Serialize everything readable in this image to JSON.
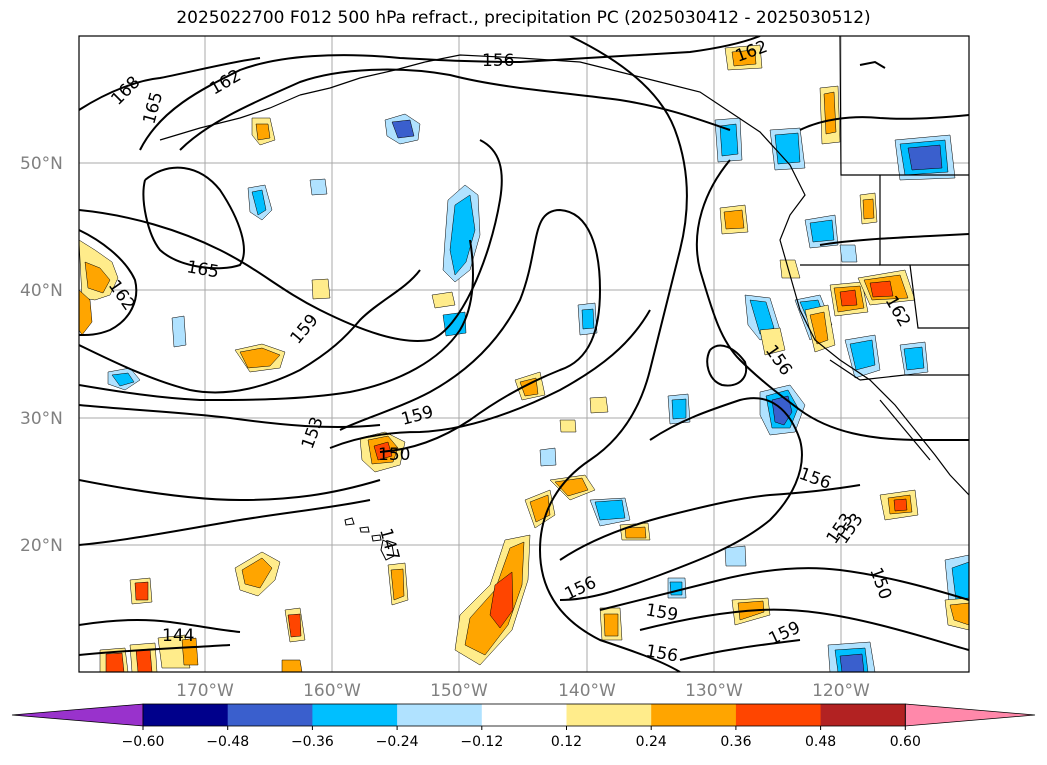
{
  "title": "2025022700 F012 500 hPa refract., precipitation PC (2025030412 - 2025030512)",
  "map": {
    "lat_labels": [
      "50°N",
      "40°N",
      "30°N",
      "20°N"
    ],
    "lon_labels": [
      "170°W",
      "160°W",
      "150°W",
      "140°W",
      "130°W",
      "120°W"
    ],
    "gridlines": true
  },
  "contour_labels": [
    "168",
    "165",
    "162",
    "162",
    "156",
    "162",
    "165",
    "162",
    "159",
    "153",
    "159",
    "150",
    "147",
    "156",
    "153",
    "156",
    "156",
    "153",
    "150",
    "159",
    "156",
    "159",
    "144"
  ],
  "colorbar": {
    "ticks": [
      "−0.60",
      "−0.48",
      "−0.36",
      "−0.24",
      "−0.12",
      "0.12",
      "0.24",
      "0.36",
      "0.48",
      "0.60"
    ],
    "colors": [
      "#9932cc",
      "#00008b",
      "#3a5fcd",
      "#00bfff",
      "#b0e2ff",
      "#ffffff",
      "#ffec8b",
      "#ffa500",
      "#ff4500",
      "#b22222",
      "#ff88aa"
    ]
  },
  "colors": {
    "land": "#000000",
    "contour": "#000000",
    "grid": "#a9a9a9"
  }
}
